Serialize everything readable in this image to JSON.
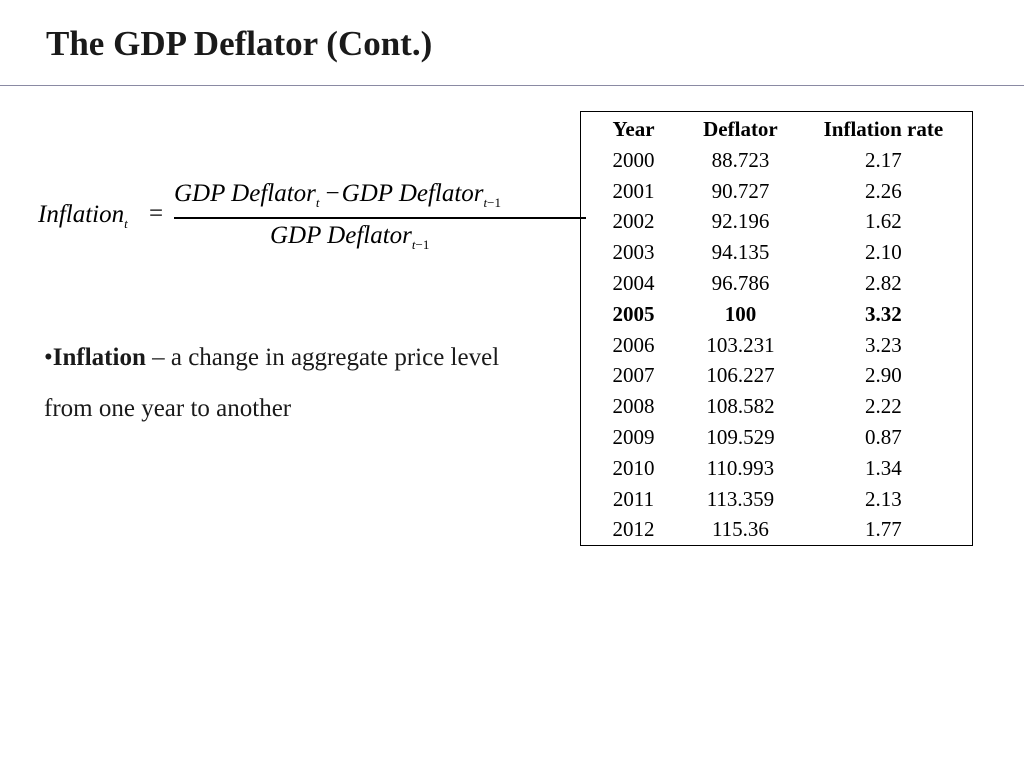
{
  "slide": {
    "title": "The GDP Deflator (Cont.)"
  },
  "formula": {
    "lhs_name": "Inflation",
    "lhs_sub": "t",
    "equals": "=",
    "numerator_term1": "GDP Deflator",
    "numerator_term1_sub": "t",
    "minus": "−",
    "numerator_term2": "GDP Deflator",
    "numerator_term2_sub_var": "t",
    "numerator_term2_sub_op": "−1",
    "denominator_term": "GDP Deflator",
    "denominator_sub_var": "t",
    "denominator_sub_op": "−1"
  },
  "bullet": {
    "marker": "•",
    "term": "Inflation",
    "text": " – a change in aggregate price level from one year to another"
  },
  "table": {
    "headers": [
      "Year",
      "Deflator",
      "Inflation rate"
    ],
    "rows": [
      {
        "year": "2000",
        "deflator": "88.723",
        "rate": "2.17"
      },
      {
        "year": "2001",
        "deflator": "90.727",
        "rate": "2.26"
      },
      {
        "year": "2002",
        "deflator": "92.196",
        "rate": "1.62"
      },
      {
        "year": "2003",
        "deflator": "94.135",
        "rate": "2.10"
      },
      {
        "year": "2004",
        "deflator": "96.786",
        "rate": "2.82"
      },
      {
        "year": "2005",
        "deflator": "100",
        "rate": "3.32",
        "bold": true
      },
      {
        "year": "2006",
        "deflator": "103.231",
        "rate": "3.23"
      },
      {
        "year": "2007",
        "deflator": "106.227",
        "rate": "2.90"
      },
      {
        "year": "2008",
        "deflator": "108.582",
        "rate": "2.22"
      },
      {
        "year": "2009",
        "deflator": "109.529",
        "rate": "0.87"
      },
      {
        "year": "2010",
        "deflator": "110.993",
        "rate": "1.34"
      },
      {
        "year": "2011",
        "deflator": "113.359",
        "rate": "2.13"
      },
      {
        "year": "2012",
        "deflator": "115.36",
        "rate": "1.77"
      }
    ]
  }
}
